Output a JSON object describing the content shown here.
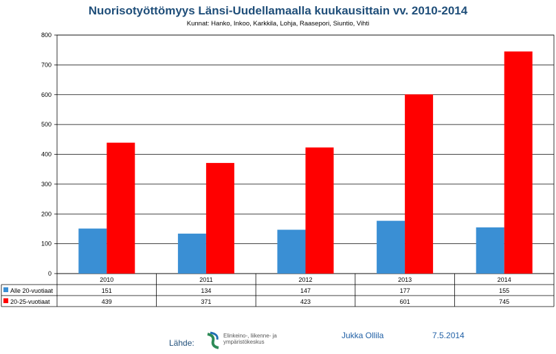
{
  "header": {
    "title": "Nuorisotyöttömyys Länsi-Uudellamaalla kuukausittain vv. 2010-2014",
    "subtitle": "Kunnat: Hanko, Inkoo, Karkkila, Lohja, Raasepori, Siuntio, Vihti"
  },
  "chart_data": {
    "type": "bar",
    "categories": [
      "2010",
      "2011",
      "2012",
      "2013",
      "2014"
    ],
    "series": [
      {
        "name": "Alle 20-vuotiaat",
        "values": [
          151,
          134,
          147,
          177,
          155
        ],
        "color": "#3a8fd4"
      },
      {
        "name": "20-25-vuotiaat",
        "values": [
          439,
          371,
          423,
          601,
          745
        ],
        "color": "#ff0000"
      }
    ],
    "ylim": [
      0,
      800
    ],
    "yticks": [
      0,
      100,
      200,
      300,
      400,
      500,
      600,
      700,
      800
    ],
    "grid": true,
    "legend": "data-table"
  },
  "footer": {
    "source_label": "Lähde:",
    "logo_text_line1": "Elinkeino-, liikenne- ja",
    "logo_text_line2": "ympäristökeskus",
    "author": "Jukka Ollila",
    "date": "7.5.2014"
  }
}
